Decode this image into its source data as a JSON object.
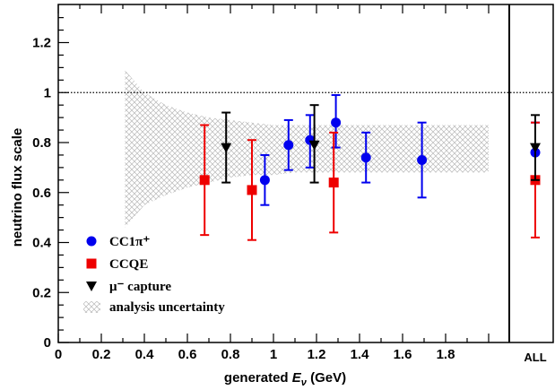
{
  "chart_data": {
    "type": "scatter",
    "xlabel": "generated Eν (GeV)",
    "ylabel": "neutrino flux scale",
    "xlim": [
      0,
      2.3
    ],
    "ylim": [
      0,
      1.35
    ],
    "x_ticks": [
      "0",
      "0.2",
      "0.4",
      "0.6",
      "0.8",
      "1",
      "1.2",
      "1.4",
      "1.6",
      "1.8"
    ],
    "y_ticks": [
      "0",
      "0.2",
      "0.4",
      "0.6",
      "0.8",
      "1",
      "1.2"
    ],
    "extra_x_label": "ALL",
    "all_divider_x": 2.0,
    "reference_line": {
      "y": 1.0,
      "style": "dotted"
    },
    "grid": false,
    "legend_position": "bottom-left",
    "series": [
      {
        "name": "CC1π⁺",
        "marker": "circle",
        "color": "#0000ee",
        "points": [
          {
            "x": 0.96,
            "y": 0.65,
            "yerr_low": 0.55,
            "yerr_high": 0.75
          },
          {
            "x": 1.07,
            "y": 0.79,
            "yerr_low": 0.69,
            "yerr_high": 0.89
          },
          {
            "x": 1.17,
            "y": 0.81,
            "yerr_low": 0.7,
            "yerr_high": 0.91
          },
          {
            "x": 1.29,
            "y": 0.88,
            "yerr_low": 0.78,
            "yerr_high": 0.99
          },
          {
            "x": 1.43,
            "y": 0.74,
            "yerr_low": 0.64,
            "yerr_high": 0.84
          },
          {
            "x": 1.69,
            "y": 0.73,
            "yerr_low": 0.58,
            "yerr_high": 0.88
          },
          {
            "x": "ALL",
            "y": 0.76,
            "yerr_low": 0.65,
            "yerr_high": 0.88
          }
        ]
      },
      {
        "name": "CCQE",
        "marker": "square",
        "color": "#ee0000",
        "points": [
          {
            "x": 0.68,
            "y": 0.65,
            "yerr_low": 0.43,
            "yerr_high": 0.87
          },
          {
            "x": 0.9,
            "y": 0.61,
            "yerr_low": 0.41,
            "yerr_high": 0.81
          },
          {
            "x": 1.28,
            "y": 0.64,
            "yerr_low": 0.44,
            "yerr_high": 0.84
          },
          {
            "x": "ALL",
            "y": 0.65,
            "yerr_low": 0.42,
            "yerr_high": 0.88
          }
        ]
      },
      {
        "name": "μ⁻ capture",
        "marker": "triangle-down",
        "color": "#000000",
        "points": [
          {
            "x": 0.78,
            "y": 0.78,
            "yerr_low": 0.64,
            "yerr_high": 0.92
          },
          {
            "x": 1.19,
            "y": 0.79,
            "yerr_low": 0.64,
            "yerr_high": 0.95
          },
          {
            "x": "ALL",
            "y": 0.78,
            "yerr_low": 0.65,
            "yerr_high": 0.91
          }
        ]
      }
    ],
    "uncertainty_band": {
      "name": "analysis uncertainty",
      "x": [
        0.31,
        0.4,
        0.5,
        0.6,
        0.7,
        0.8,
        0.9,
        1.0,
        1.1,
        1.2,
        1.3,
        1.4,
        1.5,
        1.6,
        1.7,
        1.8,
        1.9,
        2.0
      ],
      "lower": [
        0.46,
        0.55,
        0.59,
        0.62,
        0.64,
        0.66,
        0.67,
        0.67,
        0.68,
        0.68,
        0.68,
        0.68,
        0.68,
        0.68,
        0.68,
        0.68,
        0.68,
        0.68
      ],
      "upper": [
        1.09,
        1.0,
        0.95,
        0.92,
        0.9,
        0.89,
        0.88,
        0.87,
        0.87,
        0.87,
        0.87,
        0.87,
        0.87,
        0.87,
        0.87,
        0.87,
        0.87,
        0.87
      ]
    }
  }
}
